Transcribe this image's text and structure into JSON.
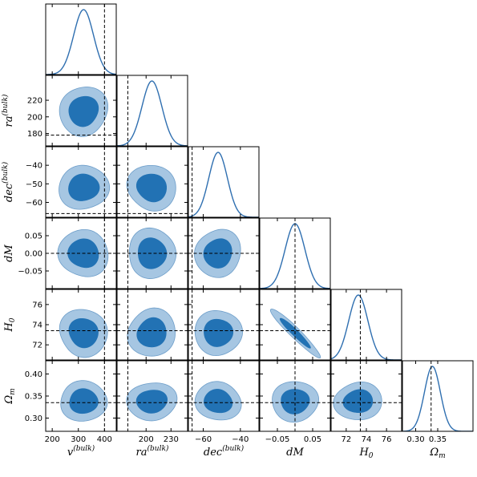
{
  "chart_data": {
    "type": "corner",
    "params": [
      {
        "key": "v",
        "label": "v",
        "script": "(bulk)",
        "script_type": "sup",
        "range": [
          175,
          445
        ],
        "ticks": [
          200,
          300,
          400
        ],
        "tick_labels": [
          "200",
          "300",
          "400"
        ],
        "truth": 400,
        "mean": 320,
        "sigma": 38
      },
      {
        "key": "ra",
        "label": "ra",
        "script": "(bulk)",
        "script_type": "sup",
        "range": [
          165,
          250
        ],
        "ticks": [
          200,
          230
        ],
        "tick_labels": [
          "200",
          "230"
        ],
        "truth": 178,
        "mean": 207,
        "sigma": 12
      },
      {
        "key": "dec",
        "label": "dec",
        "script": "(bulk)",
        "script_type": "sup",
        "range": [
          -68,
          -30
        ],
        "ticks": [
          -60,
          -40
        ],
        "tick_labels": [
          "−60",
          "−40"
        ],
        "truth": -66,
        "mean": -52,
        "sigma": 5
      },
      {
        "key": "dM",
        "label": "dM",
        "script": "",
        "script_type": "",
        "range": [
          -0.1,
          0.1
        ],
        "ticks": [
          -0.05,
          0.05
        ],
        "tick_labels": [
          "−0.05",
          "0.05"
        ],
        "truth": 0.0,
        "mean": 0.0,
        "sigma": 0.028
      },
      {
        "key": "H0",
        "label": "H",
        "script": "0",
        "script_type": "sub",
        "range": [
          70.5,
          77.5
        ],
        "ticks": [
          72,
          74,
          76
        ],
        "tick_labels": [
          "72",
          "74",
          "76"
        ],
        "truth": 73.4,
        "mean": 73.2,
        "sigma": 0.95
      },
      {
        "key": "Om",
        "label": "Ω",
        "script": "m",
        "script_type": "sub",
        "range": [
          0.27,
          0.43
        ],
        "ticks": [
          0.3,
          0.35
        ],
        "tick_labels": [
          "0.30",
          "0.35"
        ],
        "truth": 0.335,
        "mean": 0.338,
        "sigma": 0.018
      }
    ],
    "y_axis_ticks": {
      "ra": {
        "ticks": [
          180,
          200,
          220
        ],
        "tick_labels": [
          "180",
          "200",
          "220"
        ]
      },
      "dec": {
        "ticks": [
          -60,
          -50,
          -40
        ],
        "tick_labels": [
          "−60",
          "−50",
          "−40"
        ]
      },
      "dM": {
        "ticks": [
          -0.05,
          0.0,
          0.05
        ],
        "tick_labels": [
          "−0.05",
          "0.00",
          "0.05"
        ]
      },
      "H0": {
        "ticks": [
          72,
          74,
          76
        ],
        "tick_labels": [
          "72",
          "74",
          "76"
        ]
      },
      "Om": {
        "ticks": [
          0.3,
          0.35,
          0.4
        ],
        "tick_labels": [
          "0.30",
          "0.35",
          "0.40"
        ]
      }
    },
    "correlations": {
      "H0|dM": -0.95
    },
    "contour_levels": [
      "68%",
      "95%"
    ],
    "colors": {
      "line": "#2f6fb0",
      "inner": "#2272b4",
      "outer": "#a6c6e2",
      "outer_edge": "#6c9dc9",
      "truth": "#000000",
      "frame": "#000000"
    },
    "grid": false
  }
}
